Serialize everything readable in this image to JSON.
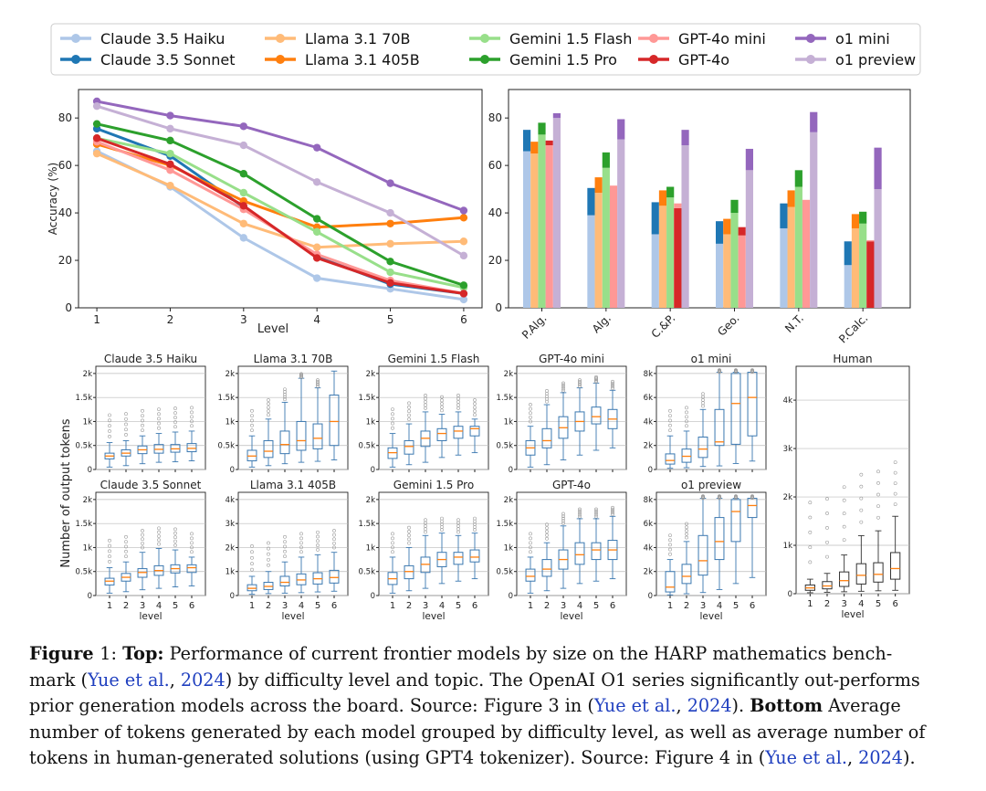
{
  "caption": {
    "fig_label": "Figure",
    "fig_number": "1:",
    "top_label": "Top:",
    "text1": "Performance of current frontier models by size on the HARP mathematics bench-",
    "text2a": "mark (",
    "cite": "Yue et al.",
    "cite_sep": ", ",
    "cite_year": "2024",
    "text2b": ") by difficulty level and topic. The OpenAI O1 series significantly out-performs",
    "text3a": "prior generation models across the board. Source: Figure 3 in (",
    "text3b": ").",
    "bottom_label": "Bottom",
    "text3c": "Average",
    "text4": "number of tokens generated by each model grouped by difficulty level, as well as average number of",
    "text5a": "tokens in human-generated solutions (using GPT4 tokenizer). Source: Figure 4 in (",
    "text5b": ")."
  },
  "chart_data": [
    {
      "type": "line",
      "legend_placement": "top",
      "x": [
        1,
        2,
        3,
        4,
        5,
        6
      ],
      "xlabel": "Level",
      "ylabel": "Accuracy (%)",
      "xlim": [
        0.75,
        6.25
      ],
      "ylim": [
        0,
        92
      ],
      "yticks": [
        0,
        20,
        40,
        60,
        80
      ],
      "grid": false,
      "series": [
        {
          "name": "Claude 3.5 Haiku",
          "color": "#aec7e8",
          "values": [
            66,
            51,
            29.5,
            12.5,
            8,
            3.5
          ]
        },
        {
          "name": "Claude 3.5 Sonnet",
          "color": "#1f77b4",
          "values": [
            75.5,
            64,
            42.5,
            21.5,
            10,
            6
          ]
        },
        {
          "name": "Llama 3.1 70B",
          "color": "#ffbb78",
          "values": [
            65,
            51.5,
            35.5,
            25.5,
            27,
            28
          ]
        },
        {
          "name": "Llama 3.1 405B",
          "color": "#ff7f0e",
          "values": [
            69,
            60,
            45,
            34,
            35.5,
            38
          ]
        },
        {
          "name": "Gemini 1.5 Flash",
          "color": "#98df8a",
          "values": [
            71.5,
            65,
            48.5,
            32,
            15,
            8.5
          ]
        },
        {
          "name": "Gemini 1.5 Pro",
          "color": "#2ca02c",
          "values": [
            77.5,
            70.5,
            56.5,
            37.5,
            19.5,
            9.5
          ]
        },
        {
          "name": "GPT-4o mini",
          "color": "#ff9896",
          "values": [
            70,
            58,
            41.5,
            22.5,
            11.5,
            6
          ]
        },
        {
          "name": "GPT-4o",
          "color": "#d62728",
          "values": [
            71.5,
            60.5,
            43,
            21,
            10.5,
            6
          ]
        },
        {
          "name": "o1 mini",
          "color": "#9467bd",
          "values": [
            87,
            81,
            76.5,
            67.5,
            52.5,
            41
          ]
        },
        {
          "name": "o1 preview",
          "color": "#c5b0d5",
          "values": [
            85,
            75.5,
            68.5,
            53,
            40,
            22
          ]
        }
      ]
    },
    {
      "type": "bar",
      "categories": [
        "P.Alg.",
        "Alg.",
        "C.&P.",
        "Geo.",
        "N.T.",
        "P.Calc."
      ],
      "ylim": [
        0,
        92
      ],
      "yticks": [
        0,
        20,
        40,
        60,
        80
      ],
      "grid": false,
      "stacked_pairs": [
        {
          "models": [
            "Claude 3.5 Haiku",
            "Claude 3.5 Sonnet"
          ],
          "colors": [
            "#aec7e8",
            "#1f77b4"
          ],
          "values": [
            [
              66,
              75
            ],
            [
              39,
              50.5
            ],
            [
              31,
              44.5
            ],
            [
              27,
              36.5
            ],
            [
              33.5,
              44
            ],
            [
              18,
              28
            ]
          ]
        },
        {
          "models": [
            "Llama 3.1 70B",
            "Llama 3.1 405B"
          ],
          "colors": [
            "#ffbb78",
            "#ff7f0e"
          ],
          "values": [
            [
              65,
              70
            ],
            [
              48.5,
              55
            ],
            [
              43,
              49.5
            ],
            [
              31,
              37.5
            ],
            [
              42.5,
              49.5
            ],
            [
              33.5,
              39.5
            ]
          ]
        },
        {
          "models": [
            "Gemini 1.5 Flash",
            "Gemini 1.5 Pro"
          ],
          "colors": [
            "#98df8a",
            "#2ca02c"
          ],
          "values": [
            [
              73,
              78
            ],
            [
              59,
              65.5
            ],
            [
              46.5,
              51
            ],
            [
              40,
              45.5
            ],
            [
              51,
              58
            ],
            [
              35.5,
              40.5
            ]
          ]
        },
        {
          "models": [
            "GPT-4o mini",
            "GPT-4o"
          ],
          "colors": [
            "#ff9896",
            "#d62728"
          ],
          "values": [
            [
              68.5,
              70.5
            ],
            [
              51.5,
              51.5
            ],
            [
              44,
              42
            ],
            [
              30.5,
              34
            ],
            [
              45.5,
              45.5
            ],
            [
              28.5,
              28
            ]
          ]
        },
        {
          "models": [
            "o1 preview",
            "o1 mini"
          ],
          "colors": [
            "#c5b0d5",
            "#9467bd"
          ],
          "values": [
            [
              80,
              82
            ],
            [
              71,
              79.5
            ],
            [
              68.5,
              75
            ],
            [
              58,
              67
            ],
            [
              74,
              82.5
            ],
            [
              50,
              67.5
            ]
          ]
        }
      ]
    },
    {
      "type": "box",
      "ylabel": "Number of output tokens",
      "xlabel": "level",
      "x": [
        1,
        2,
        3,
        4,
        5,
        6
      ],
      "panels": [
        {
          "title": "Claude 3.5 Haiku",
          "ymax": 2150,
          "yticks": [
            0,
            500,
            1000,
            1500,
            2000
          ],
          "ytick_labels": [
            "0",
            "0.5k",
            "1k",
            "1.5k",
            "2k"
          ],
          "show_xlabel": false,
          "boxes": [
            [
              50,
              220,
              280,
              340,
              560
            ],
            [
              80,
              280,
              340,
              410,
              600
            ],
            [
              120,
              330,
              410,
              490,
              700
            ],
            [
              150,
              340,
              420,
              520,
              750
            ],
            [
              160,
              360,
              430,
              520,
              780
            ],
            [
              180,
              370,
              440,
              540,
              800
            ]
          ]
        },
        {
          "title": "Llama 3.1 70B",
          "ymax": 2150,
          "yticks": [
            0,
            500,
            1000,
            1500,
            2000
          ],
          "ytick_labels": [
            "0",
            "0.5k",
            "1k",
            "1.5k",
            "2k"
          ],
          "show_xlabel": false,
          "boxes": [
            [
              50,
              180,
              280,
              400,
              700
            ],
            [
              80,
              250,
              380,
              600,
              1050
            ],
            [
              120,
              330,
              520,
              800,
              1400
            ],
            [
              150,
              400,
              600,
              1000,
              1900
            ],
            [
              170,
              430,
              650,
              950,
              1700
            ],
            [
              200,
              500,
              1000,
              1550,
              2050
            ]
          ]
        },
        {
          "title": "Gemini 1.5 Flash",
          "ymax": 2150,
          "yticks": [
            0,
            500,
            1000,
            1500,
            2000
          ],
          "ytick_labels": [
            "0",
            "0.5k",
            "1k",
            "1.5k",
            "2k"
          ],
          "show_xlabel": false,
          "boxes": [
            [
              50,
              230,
              350,
              450,
              750
            ],
            [
              100,
              320,
              480,
              600,
              950
            ],
            [
              150,
              480,
              650,
              800,
              1200
            ],
            [
              250,
              600,
              750,
              850,
              1150
            ],
            [
              300,
              650,
              800,
              900,
              1200
            ],
            [
              350,
              700,
              850,
              900,
              1050
            ]
          ]
        },
        {
          "title": "GPT-4o mini",
          "ymax": 2150,
          "yticks": [
            0,
            500,
            1000,
            1500,
            2000
          ],
          "ytick_labels": [
            "0",
            "0.5k",
            "1k",
            "1.5k",
            "2k"
          ],
          "show_xlabel": false,
          "boxes": [
            [
              50,
              300,
              450,
              600,
              900
            ],
            [
              100,
              450,
              600,
              850,
              1350
            ],
            [
              200,
              650,
              870,
              1100,
              1600
            ],
            [
              300,
              800,
              1000,
              1200,
              1700
            ],
            [
              400,
              950,
              1100,
              1300,
              1800
            ],
            [
              450,
              850,
              1050,
              1250,
              1650
            ]
          ]
        },
        {
          "title": "o1 mini",
          "ymax": 8600,
          "yticks": [
            0,
            2000,
            4000,
            6000,
            8000
          ],
          "ytick_labels": [
            "0",
            "2k",
            "4k",
            "6k",
            "8k"
          ],
          "show_xlabel": false,
          "boxes": [
            [
              100,
              450,
              750,
              1300,
              2800
            ],
            [
              150,
              600,
              1100,
              1700,
              3200
            ],
            [
              250,
              1000,
              1700,
              2700,
              5000
            ],
            [
              300,
              2000,
              2300,
              5000,
              8100
            ],
            [
              500,
              2100,
              5500,
              8000,
              8100
            ],
            [
              700,
              2800,
              6000,
              8100,
              8100
            ]
          ]
        },
        {
          "title": "Claude 3.5 Sonnet",
          "ymax": 2150,
          "yticks": [
            0,
            500,
            1000,
            1500,
            2000
          ],
          "ytick_labels": [
            "0",
            "0.5k",
            "1k",
            "1.5k",
            "2k"
          ],
          "show_xlabel": true,
          "boxes": [
            [
              50,
              220,
              300,
              360,
              580
            ],
            [
              80,
              300,
              380,
              460,
              700
            ],
            [
              120,
              380,
              480,
              560,
              900
            ],
            [
              150,
              420,
              520,
              620,
              980
            ],
            [
              180,
              470,
              560,
              640,
              950
            ],
            [
              200,
              480,
              580,
              640,
              800
            ]
          ]
        },
        {
          "title": "Llama 3.1 405B",
          "ymax": 4300,
          "yticks": [
            0,
            1000,
            2000,
            3000,
            4000
          ],
          "ytick_labels": [
            "0",
            "1k",
            "2k",
            "3k",
            "4k"
          ],
          "show_xlabel": true,
          "boxes": [
            [
              50,
              200,
              300,
              450,
              800
            ],
            [
              80,
              250,
              380,
              550,
              1000
            ],
            [
              100,
              400,
              550,
              800,
              1400
            ],
            [
              120,
              450,
              650,
              900,
              1600
            ],
            [
              150,
              480,
              700,
              950,
              1700
            ],
            [
              180,
              520,
              750,
              1050,
              1800
            ]
          ]
        },
        {
          "title": "Gemini 1.5 Pro",
          "ymax": 2150,
          "yticks": [
            0,
            500,
            1000,
            1500,
            2000
          ],
          "ytick_labels": [
            "0",
            "0.5k",
            "1k",
            "1.5k",
            "2k"
          ],
          "show_xlabel": true,
          "boxes": [
            [
              50,
              230,
              350,
              480,
              800
            ],
            [
              100,
              350,
              500,
              620,
              1000
            ],
            [
              150,
              480,
              650,
              800,
              1250
            ],
            [
              250,
              600,
              750,
              900,
              1300
            ],
            [
              300,
              650,
              800,
              900,
              1250
            ],
            [
              350,
              700,
              800,
              950,
              1300
            ]
          ]
        },
        {
          "title": "GPT-4o",
          "ymax": 2150,
          "yticks": [
            0,
            500,
            1000,
            1500,
            2000
          ],
          "ytick_labels": [
            "0",
            "0.5k",
            "1k",
            "1.5k",
            "2k"
          ],
          "show_xlabel": true,
          "boxes": [
            [
              50,
              300,
              400,
              550,
              800
            ],
            [
              100,
              400,
              550,
              750,
              1100
            ],
            [
              150,
              550,
              750,
              950,
              1450
            ],
            [
              250,
              650,
              850,
              1100,
              1600
            ],
            [
              300,
              750,
              950,
              1100,
              1600
            ],
            [
              350,
              750,
              950,
              1150,
              1650
            ]
          ]
        },
        {
          "title": "o1 preview",
          "ymax": 8600,
          "yticks": [
            0,
            2000,
            4000,
            6000,
            8000
          ],
          "ytick_labels": [
            "0",
            "2k",
            "4k",
            "6k",
            "8k"
          ],
          "show_xlabel": true,
          "boxes": [
            [
              50,
              300,
              700,
              2000,
              3000
            ],
            [
              150,
              1000,
              1600,
              2600,
              4500
            ],
            [
              250,
              1700,
              2900,
              5000,
              8100
            ],
            [
              500,
              3000,
              4500,
              6500,
              8100
            ],
            [
              1000,
              4500,
              7000,
              8000,
              8100
            ],
            [
              1500,
              6500,
              7500,
              8100,
              8100
            ]
          ]
        },
        {
          "title": "Human",
          "ymax": 4700,
          "yticks": [
            0,
            1000,
            2000,
            3000,
            4000
          ],
          "ytick_labels": [
            "0",
            "1k",
            "2k",
            "3k",
            "4k"
          ],
          "show_xlabel": true,
          "tall": true,
          "boxes": [
            [
              20,
              70,
              120,
              180,
              300
            ],
            [
              30,
              100,
              160,
              250,
              420
            ],
            [
              40,
              150,
              270,
              450,
              800
            ],
            [
              50,
              200,
              380,
              620,
              1200
            ],
            [
              60,
              240,
              400,
              640,
              1300
            ],
            [
              70,
              300,
              520,
              850,
              1600
            ]
          ]
        }
      ]
    }
  ]
}
